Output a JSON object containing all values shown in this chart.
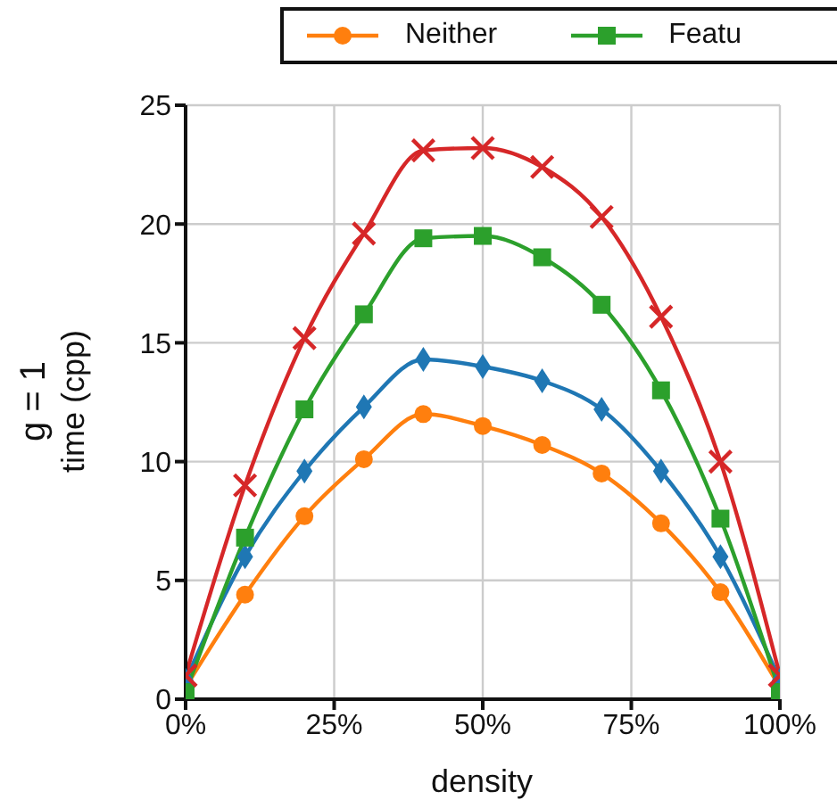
{
  "chart_data": {
    "type": "line",
    "xlabel": "density",
    "ylabel": "g = 1\ntime (cpp)",
    "x": [
      0,
      10,
      20,
      30,
      40,
      50,
      60,
      70,
      80,
      90,
      100
    ],
    "series": [
      {
        "name": "Neither",
        "color": "#ff7f0e",
        "marker": "circle",
        "values": [
          0.5,
          4.4,
          7.7,
          10.1,
          12.0,
          11.5,
          10.7,
          9.5,
          7.4,
          4.5,
          0.5
        ]
      },
      {
        "color": "#1f77b4",
        "marker": "diamond",
        "values": [
          0.8,
          6.0,
          9.6,
          12.3,
          14.3,
          14.0,
          13.4,
          12.2,
          9.6,
          6.0,
          0.8
        ]
      },
      {
        "name": "Featu",
        "color": "#2ca02c",
        "marker": "square",
        "values": [
          0.3,
          6.8,
          12.2,
          16.2,
          19.4,
          19.5,
          18.6,
          16.6,
          13.0,
          7.6,
          0.3
        ]
      },
      {
        "color": "#d62728",
        "marker": "cross",
        "values": [
          1.0,
          9.0,
          15.2,
          19.6,
          23.1,
          23.2,
          22.4,
          20.3,
          16.1,
          10.0,
          1.0
        ]
      }
    ],
    "xlim": [
      0,
      100
    ],
    "xticks": [
      {
        "value": 0,
        "label": "0%"
      },
      {
        "value": 25,
        "label": "25%"
      },
      {
        "value": 50,
        "label": "50%"
      },
      {
        "value": 75,
        "label": "75%"
      },
      {
        "value": 100,
        "label": "100%"
      }
    ],
    "ylim": [
      0,
      25
    ],
    "yticks": [
      0,
      5,
      10,
      15,
      20,
      25
    ],
    "grid": true,
    "legend": "top",
    "line_style": "solid"
  }
}
